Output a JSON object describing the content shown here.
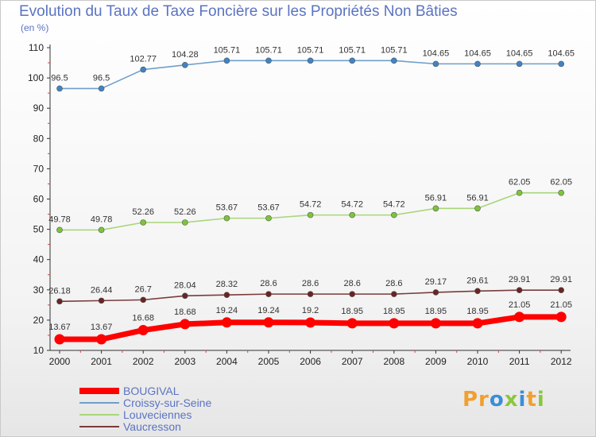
{
  "header": {
    "title": "Evolution du Taux de Taxe Foncière sur les Propriétés Non Bâties",
    "subtitle": "(en %)"
  },
  "logo": {
    "text": "Proxiti"
  },
  "chart_data": {
    "type": "line",
    "title": "Evolution du Taux de Taxe Foncière sur les Propriétés Non Bâties",
    "ylabel": "(en %)",
    "xlabel": "",
    "x": [
      "2000",
      "2001",
      "2002",
      "2003",
      "2004",
      "2005",
      "2006",
      "2007",
      "2008",
      "2009",
      "2010",
      "2011",
      "2012"
    ],
    "ylim": [
      10,
      110
    ],
    "yticks": [
      10,
      20,
      30,
      40,
      50,
      60,
      70,
      80,
      90,
      100,
      110
    ],
    "grid": false,
    "legend": "bottom-left",
    "series": [
      {
        "name": "BOUGIVAL",
        "color": "#ff0000",
        "marker_color": "#ff0000",
        "values": [
          13.67,
          13.67,
          16.68,
          18.68,
          19.24,
          19.24,
          19.2,
          18.95,
          18.95,
          18.95,
          18.95,
          21.05,
          21.05
        ],
        "labels": [
          "13.67",
          "13.67",
          "16.68",
          "18.68",
          "19.24",
          "19.24",
          "19.2",
          "18.95",
          "18.95",
          "18.95",
          "18.95",
          "21.05",
          "21.05"
        ]
      },
      {
        "name": "Croissy-sur-Seine",
        "color": "#6e9fcc",
        "marker_color": "#3f84c6",
        "values": [
          96.5,
          96.5,
          102.77,
          104.28,
          105.71,
          105.71,
          105.71,
          105.71,
          105.71,
          104.65,
          104.65,
          104.65,
          104.65
        ],
        "labels": [
          "96.5",
          "96.5",
          "102.77",
          "104.28",
          "105.71",
          "105.71",
          "105.71",
          "105.71",
          "105.71",
          "104.65",
          "104.65",
          "104.65",
          "104.65"
        ]
      },
      {
        "name": "Louveciennes",
        "color": "#a8d67a",
        "marker_color": "#7cc53a",
        "values": [
          49.78,
          49.78,
          52.26,
          52.26,
          53.67,
          53.67,
          54.72,
          54.72,
          54.72,
          56.91,
          56.91,
          62.05,
          62.05
        ],
        "labels": [
          "49.78",
          "49.78",
          "52.26",
          "52.26",
          "53.67",
          "53.67",
          "54.72",
          "54.72",
          "54.72",
          "56.91",
          "56.91",
          "62.05",
          "62.05"
        ]
      },
      {
        "name": "Vaucresson",
        "color": "#7a3b3b",
        "marker_color": "#6b2424",
        "values": [
          26.18,
          26.44,
          26.7,
          28.04,
          28.32,
          28.6,
          28.6,
          28.6,
          28.6,
          29.17,
          29.61,
          29.91,
          29.91
        ],
        "labels": [
          "26.18",
          "26.44",
          "26.7",
          "28.04",
          "28.32",
          "28.6",
          "28.6",
          "28.6",
          "28.6",
          "29.17",
          "29.61",
          "29.91",
          "29.91"
        ]
      }
    ]
  }
}
